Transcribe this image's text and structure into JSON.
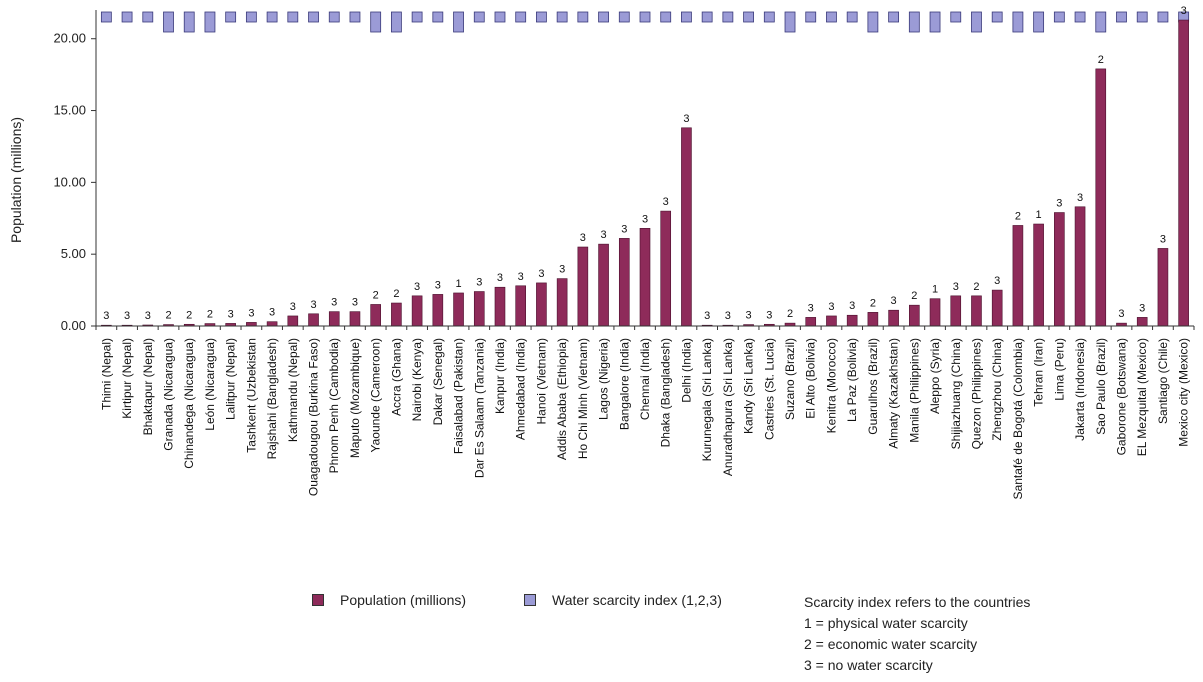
{
  "chart_data": {
    "type": "bar",
    "ylabel": "Population (millions)",
    "ylim": [
      0,
      22
    ],
    "yticks": [
      "0.00",
      "5.00",
      "10.00",
      "15.00",
      "20.00"
    ],
    "grid": false,
    "legend_placement": "bottom",
    "colors": {
      "population": "#8e2b5a",
      "scarcity": "#9b9bd6",
      "population_stroke": "#4a0f2c",
      "scarcity_stroke": "#3a3a7a"
    },
    "categories": [
      "Thimi (Nepal)",
      "Kirtipur (Nepal)",
      "Bhaktapur (Nepal)",
      "Granada (Nicaragua)",
      "Chinandega (Nicaragua)",
      "León (Nicaragua)",
      "Lalitpur (Nepal)",
      "Tashkent (Uzbekistan",
      "Rajshahi (Bangladesh)",
      "Kathmandu (Nepal)",
      "Ouagadougou (Burkina Faso)",
      "Phnom Penh (Cambodia)",
      "Maputo (Mozambique)",
      "Yaounde (Cameroon)",
      "Accra (Ghana)",
      "Nairobi (Kenya)",
      "Dakar (Senegal)",
      "Faisalabad (Pakistan)",
      "Dar Es Salaam (Tanzania)",
      "Kanpur (India)",
      "Ahmedabad (India)",
      "Hanoi (Vietnam)",
      "Addis Ababa (Ethiopia)",
      "Ho Chi Minh (Vietnam)",
      "Lagos (Nigeria)",
      "Bangalore (India)",
      "Chennai (India)",
      "Dhaka (Bangladesh)",
      "Delhi (India)",
      "Kurunegala (Sri Lanka)",
      "Anuradhapura (Sri Lanka)",
      "Kandy (Sri Lanka)",
      "Castries (St. Lucia)",
      "Suzano (Brazil)",
      "El Alto (Bolivia)",
      "Kenitra (Morocco)",
      "La Paz (Bolivia)",
      "Guarulhos (Brazil)",
      "Almaty (Kazakhstan)",
      "Manila (Philippines)",
      "Aleppo (Syria)",
      "Shijiazhuang (China)",
      "Quezon (Philippines)",
      "Zhengzhou (China)",
      "Santafé de Bogotá (Colombia)",
      "Tehran (Iran)",
      "Lima (Peru)",
      "Jakarta (Indonesia)",
      "Sao Paulo (Brazil)",
      "Gaborone (Botswana)",
      "EL Mezquital (Mexico)",
      "Santiago (Chile)",
      "Mexico city (Mexico)"
    ],
    "series": [
      {
        "name": "Population (millions)",
        "values": [
          0.02,
          0.03,
          0.07,
          0.1,
          0.12,
          0.17,
          0.18,
          0.25,
          0.3,
          0.7,
          0.85,
          1.0,
          1.0,
          1.5,
          1.6,
          2.1,
          2.2,
          2.3,
          2.4,
          2.7,
          2.8,
          3.0,
          3.3,
          5.5,
          5.7,
          6.1,
          6.8,
          8.0,
          13.8,
          0.02,
          0.04,
          0.1,
          0.12,
          0.2,
          0.6,
          0.7,
          0.75,
          0.95,
          1.1,
          1.45,
          1.9,
          2.1,
          2.1,
          2.5,
          7.0,
          7.1,
          7.9,
          8.3,
          17.9,
          0.2,
          0.6,
          5.4,
          21.3
        ]
      },
      {
        "name": "Water scarcity index (1,2,3)",
        "values": [
          3,
          3,
          3,
          2,
          2,
          2,
          3,
          3,
          3,
          3,
          3,
          3,
          3,
          2,
          2,
          3,
          3,
          1,
          3,
          3,
          3,
          3,
          3,
          3,
          3,
          3,
          3,
          3,
          3,
          3,
          3,
          3,
          3,
          2,
          3,
          3,
          3,
          2,
          3,
          2,
          1,
          3,
          2,
          3,
          2,
          1,
          3,
          3,
          2,
          3,
          3,
          3,
          3
        ]
      }
    ],
    "data_labels": [
      "3",
      "3",
      "3",
      "2",
      "2",
      "2",
      "3",
      "3",
      "3",
      "3",
      "3",
      "3",
      "3",
      "2",
      "2",
      "3",
      "3",
      "1",
      "3",
      "3",
      "3",
      "3",
      "3",
      "3",
      "3",
      "3",
      "3",
      "3",
      "3",
      "3",
      "3",
      "3",
      "3",
      "2",
      "3",
      "3",
      "3",
      "2",
      "3",
      "2",
      "1",
      "3",
      "2",
      "3",
      "2",
      "1",
      "3",
      "3",
      "2",
      "3",
      "3",
      "3",
      "3"
    ]
  },
  "legend": {
    "population_label": "Population (millions)",
    "scarcity_label": "Water scarcity index (1,2,3)",
    "note_title": "Scarcity index refers to the countries",
    "note_1": "1 = physical water scarcity",
    "note_2": "2 = economic water scarcity",
    "note_3": "3 = no water scarcity"
  }
}
